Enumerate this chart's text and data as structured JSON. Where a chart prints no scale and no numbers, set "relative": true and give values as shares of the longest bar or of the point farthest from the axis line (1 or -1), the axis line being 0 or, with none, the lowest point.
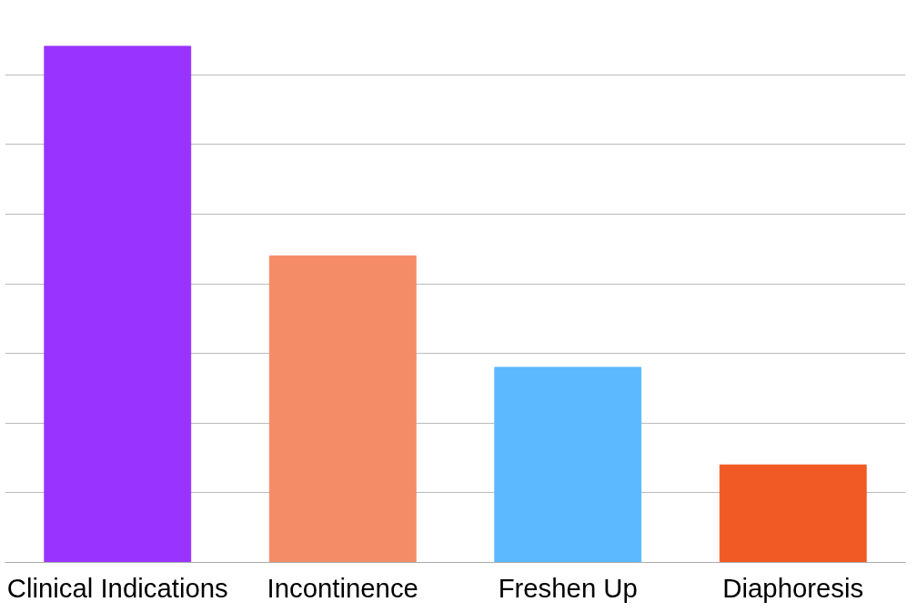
{
  "chart_data": {
    "type": "bar",
    "relative": true,
    "grid": "y",
    "categories": [
      "Clinical Indications",
      "Incontinence",
      "Freshen Up",
      "Diaphoresis"
    ],
    "values": [
      1,
      0.594,
      0.378,
      0.189
    ],
    "colors": [
      "#9933ff",
      "#f48c67",
      "#5cb8ff",
      "#f15a24"
    ]
  }
}
